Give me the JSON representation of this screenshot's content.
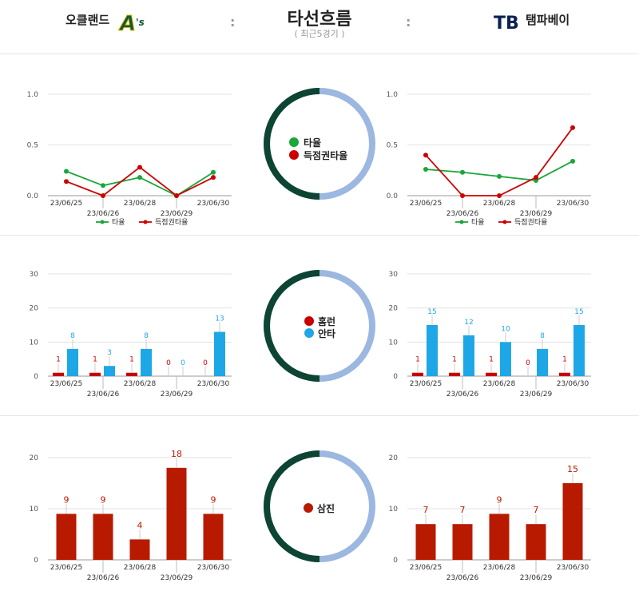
{
  "header": {
    "title": "타선흐름",
    "subtitle": "( 최근5경기 )",
    "left_team": "오클랜드",
    "right_team": "탬파베이",
    "left_logo_text": "A's",
    "right_logo_text": "TB",
    "colon": ":"
  },
  "colors": {
    "avg_line": "#1aa63a",
    "risp_line": "#cc0000",
    "hr": "#c80000",
    "hits": "#1ea7e6",
    "so": "#b81a00",
    "donut_dark": "#0d4433",
    "donut_light": "#9cb7e0"
  },
  "legends": {
    "avg_legend": [
      "타율",
      "득점권타율"
    ],
    "center1": [
      "타율",
      "득점권타율"
    ],
    "center2": [
      "홈런",
      "안타"
    ],
    "center3": [
      "삼진"
    ]
  },
  "chart_data": [
    {
      "id": "oak_avg",
      "type": "line",
      "categories": [
        "23/06/25",
        "23/06/26",
        "23/06/28",
        "23/06/29",
        "23/06/30"
      ],
      "ylim": [
        0,
        1.0
      ],
      "yticks": [
        "0.0",
        "0.5",
        "1.0"
      ],
      "series": [
        {
          "name": "타율",
          "values": [
            0.24,
            0.1,
            0.18,
            0.0,
            0.23
          ]
        },
        {
          "name": "득점권타율",
          "values": [
            0.14,
            0.0,
            0.28,
            0.0,
            0.18
          ]
        }
      ]
    },
    {
      "id": "tb_avg",
      "type": "line",
      "categories": [
        "23/06/25",
        "23/06/26",
        "23/06/28",
        "23/06/29",
        "23/06/30"
      ],
      "ylim": [
        0,
        1.0
      ],
      "yticks": [
        "0.0",
        "0.5",
        "1.0"
      ],
      "series": [
        {
          "name": "타율",
          "values": [
            0.26,
            0.23,
            0.19,
            0.15,
            0.34
          ]
        },
        {
          "name": "득점권타율",
          "values": [
            0.4,
            0.0,
            0.0,
            0.18,
            0.67
          ]
        }
      ]
    },
    {
      "id": "oak_hits",
      "type": "bar",
      "categories": [
        "23/06/25",
        "23/06/26",
        "23/06/28",
        "23/06/29",
        "23/06/30"
      ],
      "ylim": [
        0,
        30
      ],
      "yticks": [
        "0",
        "10",
        "20",
        "30"
      ],
      "series": [
        {
          "name": "홈런",
          "values": [
            1,
            1,
            1,
            0,
            0
          ]
        },
        {
          "name": "안타",
          "values": [
            8,
            3,
            8,
            0,
            13
          ]
        }
      ]
    },
    {
      "id": "tb_hits",
      "type": "bar",
      "categories": [
        "23/06/25",
        "23/06/26",
        "23/06/28",
        "23/06/29",
        "23/06/30"
      ],
      "ylim": [
        0,
        30
      ],
      "yticks": [
        "0",
        "10",
        "20",
        "30"
      ],
      "series": [
        {
          "name": "홈런",
          "values": [
            1,
            1,
            1,
            0,
            1
          ]
        },
        {
          "name": "안타",
          "values": [
            15,
            12,
            10,
            8,
            15
          ]
        }
      ]
    },
    {
      "id": "oak_so",
      "type": "bar",
      "categories": [
        "23/06/25",
        "23/06/26",
        "23/06/28",
        "23/06/29",
        "23/06/30"
      ],
      "ylim": [
        0,
        20
      ],
      "yticks": [
        "0",
        "10",
        "20"
      ],
      "series": [
        {
          "name": "삼진",
          "values": [
            9,
            9,
            4,
            18,
            9
          ]
        }
      ]
    },
    {
      "id": "tb_so",
      "type": "bar",
      "categories": [
        "23/06/25",
        "23/06/26",
        "23/06/28",
        "23/06/29",
        "23/06/30"
      ],
      "ylim": [
        0,
        20
      ],
      "yticks": [
        "0",
        "10",
        "20"
      ],
      "series": [
        {
          "name": "삼진",
          "values": [
            7,
            7,
            9,
            7,
            15
          ]
        }
      ]
    }
  ]
}
